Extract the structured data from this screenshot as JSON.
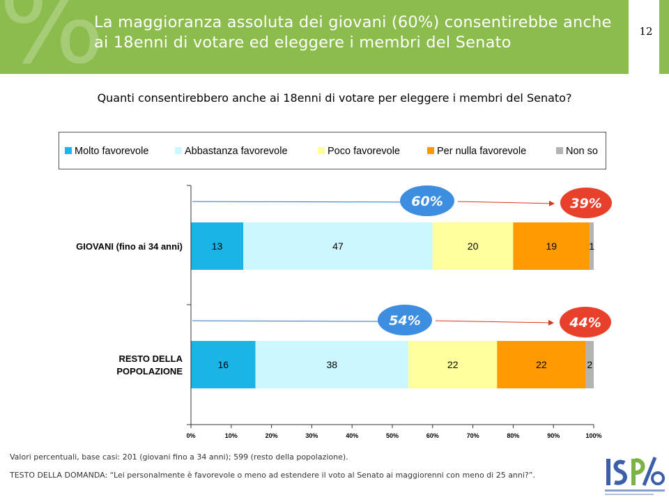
{
  "header": {
    "title": "La maggioranza assoluta dei giovani (60%) consentirebbe anche ai 18enni di votare ed eleggere i membri del Senato",
    "watermark": "%",
    "page_number": "12"
  },
  "question": "Quanti consentirebbero anche ai 18enni di votare per eleggere i membri del Senato?",
  "colors": {
    "header_bg": "#8cbb4e",
    "blue_bubble": "#3d8ee0",
    "red_bubble": "#e8402a"
  },
  "chart_data": {
    "type": "bar",
    "orientation": "horizontal",
    "stacked": true,
    "categories": [
      "GIOVANI (fino ai 34 anni)",
      "RESTO DELLA POPOLAZIONE"
    ],
    "category_lines": [
      [
        "GIOVANI (fino ai 34 anni)"
      ],
      [
        "RESTO DELLA",
        "POPOLAZIONE"
      ]
    ],
    "series": [
      {
        "name": "Molto favorevole",
        "color": "#1ab4e6",
        "values": [
          13,
          16
        ]
      },
      {
        "name": "Abbastanza favorevole",
        "color": "#ccf7ff",
        "values": [
          47,
          38
        ]
      },
      {
        "name": "Poco favorevole",
        "color": "#ffff9e",
        "values": [
          20,
          22
        ]
      },
      {
        "name": "Per nulla favorevole",
        "color": "#ff9900",
        "values": [
          19,
          22
        ]
      },
      {
        "name": "Non so",
        "color": "#b3b3b3",
        "values": [
          1,
          2
        ]
      }
    ],
    "xlim": [
      0,
      100
    ],
    "x_ticks": [
      "0%",
      "10%",
      "20%",
      "30%",
      "40%",
      "50%",
      "60%",
      "70%",
      "80%",
      "90%",
      "100%"
    ],
    "legend_position": "top",
    "grid": false,
    "annotations": [
      {
        "label": "60%",
        "value": 60,
        "category": 0,
        "type": "favorable"
      },
      {
        "label": "39%",
        "value": 39,
        "category": 0,
        "type": "unfavorable"
      },
      {
        "label": "54%",
        "value": 54,
        "category": 1,
        "type": "favorable"
      },
      {
        "label": "44%",
        "value": 44,
        "category": 1,
        "type": "unfavorable"
      }
    ]
  },
  "footnotes": {
    "base": "Valori percentuali, base casi: 201 (giovani fino a 34 anni); 599 (resto della popolazione).",
    "question_text": "TESTO DELLA DOMANDA: “Lei personalmente è favorevole o meno ad estendere il voto al Senato ai maggiorenni con meno di 25 anni?”."
  },
  "logo": {
    "text": "ISPO"
  }
}
